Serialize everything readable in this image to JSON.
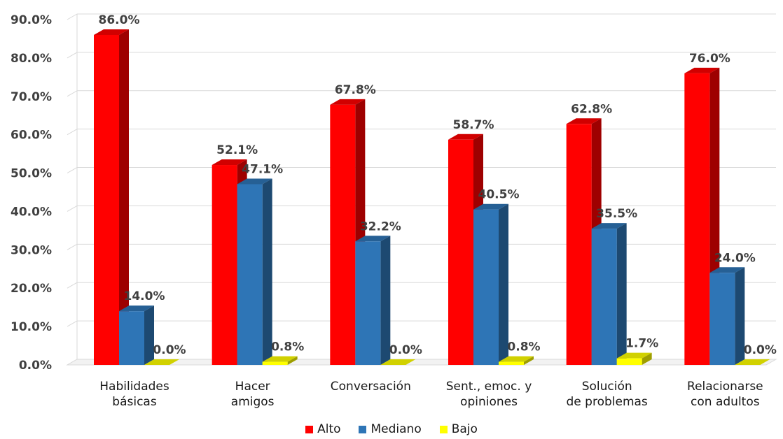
{
  "chart_data": {
    "type": "bar",
    "categories": [
      [
        "Habilidades",
        "básicas"
      ],
      [
        "Hacer",
        "amigos"
      ],
      [
        "Conversación"
      ],
      [
        "Sent., emoc. y",
        "opiniones"
      ],
      [
        "Solución",
        "de problemas"
      ],
      [
        "Relacionarse",
        "con adultos"
      ]
    ],
    "series": [
      {
        "name": "Alto",
        "color": "#ff0000",
        "values": [
          86.0,
          52.1,
          67.8,
          58.7,
          62.8,
          76.0
        ]
      },
      {
        "name": "Mediano",
        "color": "#2e75b6",
        "values": [
          14.0,
          47.1,
          32.2,
          40.5,
          35.5,
          24.0
        ]
      },
      {
        "name": "Bajo",
        "color": "#ffff00",
        "values": [
          0.0,
          0.8,
          0.0,
          0.8,
          1.7,
          0.0
        ]
      }
    ],
    "data_labels": {
      "Alto": [
        "86.0%",
        "52.1%",
        "67.8%",
        "58.7%",
        "62.8%",
        "76.0%"
      ],
      "Mediano": [
        "14.0%",
        "47.1%",
        "32.2%",
        "40.5%",
        "35.5%",
        "24.0%"
      ],
      "Bajo": [
        "0.0%",
        "0.8%",
        "0.0%",
        "0.8%",
        "1.7%",
        "0.0%"
      ]
    },
    "yticks": [
      "0.0%",
      "10.0%",
      "20.0%",
      "30.0%",
      "40.0%",
      "50.0%",
      "60.0%",
      "70.0%",
      "80.0%",
      "90.0%"
    ],
    "ylim": [
      0,
      90
    ],
    "grid": true,
    "legend_position": "bottom",
    "style": "3d-clustered-column"
  }
}
